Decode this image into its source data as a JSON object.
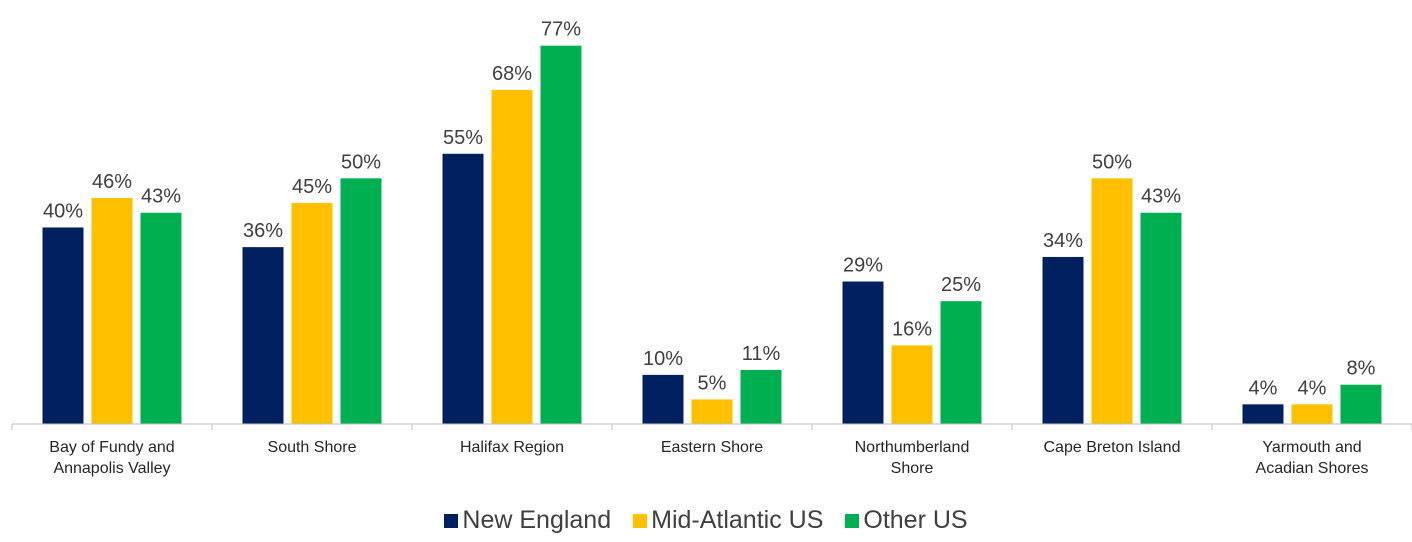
{
  "chart_data": {
    "type": "bar",
    "categories": [
      "Bay of Fundy and Annapolis Valley",
      "South Shore",
      "Halifax Region",
      "Eastern Shore",
      "Northumberland Shore",
      "Cape Breton Island",
      "Yarmouth and Acadian Shores"
    ],
    "series": [
      {
        "name": "New England",
        "color": "#002060",
        "values": [
          40,
          36,
          55,
          10,
          29,
          34,
          4
        ],
        "value_labels": [
          "40%",
          "36%",
          "55%",
          "10%",
          "29%",
          "34%",
          "4%"
        ]
      },
      {
        "name": "Mid-Atlantic US",
        "color": "#ffc000",
        "values": [
          46,
          45,
          68,
          5,
          16,
          50,
          4
        ],
        "value_labels": [
          "46%",
          "45%",
          "68%",
          "5%",
          "16%",
          "50%",
          "4%"
        ]
      },
      {
        "name": "Other US",
        "color": "#00b050",
        "values": [
          43,
          50,
          77,
          11,
          25,
          43,
          8
        ],
        "value_labels": [
          "43%",
          "50%",
          "77%",
          "11%",
          "25%",
          "43%",
          "8%"
        ]
      }
    ],
    "ylim": [
      0,
      86.3
    ],
    "legend": "bottom"
  }
}
